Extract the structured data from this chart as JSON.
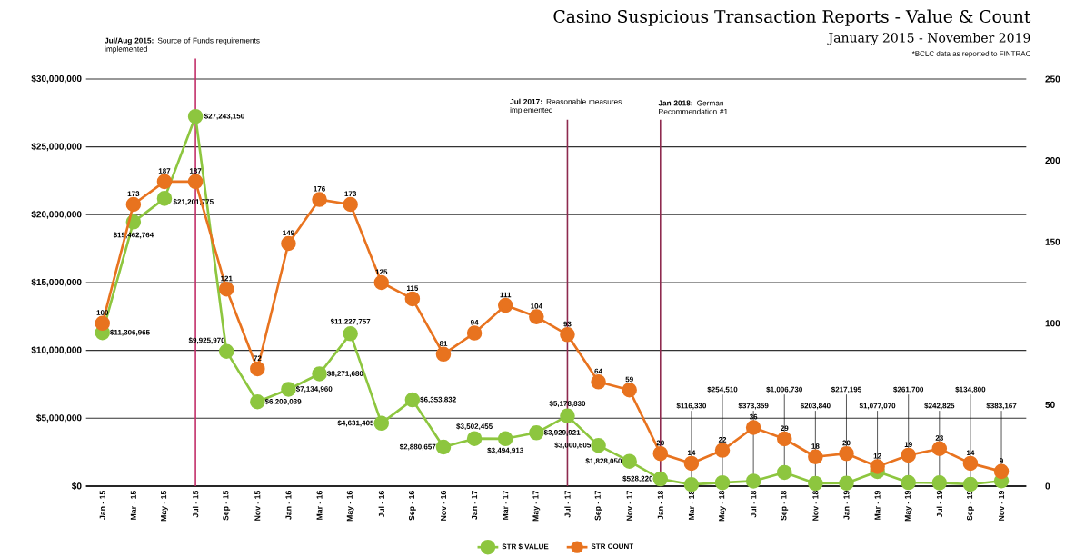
{
  "chart_data": {
    "type": "line",
    "title": "Casino Suspicious Transaction Reports - Value & Count",
    "subtitle": "January 2015 - November 2019",
    "annotations": [
      "*BCLC data as reported to FINTRAC"
    ],
    "categories": [
      "Jan - 15",
      "Mar - 15",
      "May - 15",
      "Jul - 15",
      "Sep - 15",
      "Nov - 15",
      "Jan - 16",
      "Mar - 16",
      "May - 16",
      "Jul - 16",
      "Sep - 16",
      "Nov - 16",
      "Jan - 17",
      "Mar - 17",
      "May - 17",
      "Jul - 17",
      "Sep - 17",
      "Nov - 17",
      "Jan - 18",
      "Mar - 18",
      "May - 18",
      "Jul - 18",
      "Sep - 18",
      "Nov - 18",
      "Jan - 19",
      "Mar - 19",
      "May - 19",
      "Jul - 19",
      "Sep - 19",
      "Nov - 19"
    ],
    "series": [
      {
        "name": "STR $ VALUE",
        "color": "#8dc63f",
        "values": [
          11306965,
          19462764,
          21201775,
          27243150,
          9925970,
          6209039,
          7134960,
          8271680,
          11227757,
          4631405,
          6353832,
          2880657,
          3502455,
          3494913,
          3929921,
          5178830,
          3000605,
          1828050,
          528220,
          116330,
          254510,
          373359,
          1006730,
          203840,
          217195,
          1077070,
          261700,
          242825,
          134800,
          383167
        ],
        "value_labels": [
          "$11,306,965",
          "$19,462,764",
          "$21,201,775",
          "$27,243,150",
          "$9,925,970",
          "$6,209,039",
          "$7,134,960",
          "$8,271,680",
          "$11,227,757",
          "$4,631,405",
          "$6,353,832",
          "$2,880,657",
          "$3,502,455",
          "$3,494,913",
          "$3,929,921",
          "$5,178,830",
          "$3,000,605",
          "$1,828,050",
          "$528,220",
          "$116,330",
          "$254,510",
          "$373,359",
          "$1,006,730",
          "$203,840",
          "$217,195",
          "$1,077,070",
          "$261,700",
          "$242,825",
          "$134,800",
          "$383,167"
        ]
      },
      {
        "name": "STR COUNT",
        "color": "#e8731f",
        "axis": "y2",
        "values": [
          100,
          173,
          187,
          187,
          121,
          72,
          149,
          176,
          173,
          125,
          115,
          81,
          94,
          111,
          104,
          93,
          64,
          59,
          20,
          14,
          22,
          36,
          29,
          18,
          20,
          12,
          19,
          23,
          14,
          9
        ],
        "value_labels": [
          "100",
          "173",
          "187",
          "187",
          "121",
          "72",
          "149",
          "176",
          "173",
          "125",
          "115",
          "81",
          "94",
          "111",
          "104",
          "93",
          "64",
          "59",
          "20",
          "14",
          "22",
          "36",
          "29",
          "18",
          "20",
          "12",
          "19",
          "23",
          "14",
          "9"
        ]
      }
    ],
    "ylim": [
      0,
      30000000
    ],
    "yticks": [
      {
        "value": 0,
        "label": "$0"
      },
      {
        "value": 5000000,
        "label": "$5,000,000"
      },
      {
        "value": 10000000,
        "label": "$10,000,000"
      },
      {
        "value": 15000000,
        "label": "$15,000,000"
      },
      {
        "value": 20000000,
        "label": "$20,000,000"
      },
      {
        "value": 25000000,
        "label": "$25,000,000"
      },
      {
        "value": 30000000,
        "label": "$30,000,000"
      }
    ],
    "y2lim": [
      0,
      250
    ],
    "y2ticks": [
      0,
      50,
      100,
      150,
      200,
      250
    ],
    "ref_lines": [
      {
        "axis": "x",
        "value": "Jul - 15",
        "label": "**Jul/Aug 2015:** Source of Funds requirements implemented",
        "color": "#c2306a"
      },
      {
        "axis": "x",
        "value": "Jul - 17",
        "label": "**Jul 2017:** Reasonable measures implemented",
        "color": "#8e2a4e"
      },
      {
        "axis": "x",
        "value": "Jan - 18",
        "label": "**Jan 2018:** German Recommendation #1",
        "color": "#8e2a4e"
      }
    ],
    "grid": "y",
    "legend": "bottom",
    "marker": "circle"
  }
}
